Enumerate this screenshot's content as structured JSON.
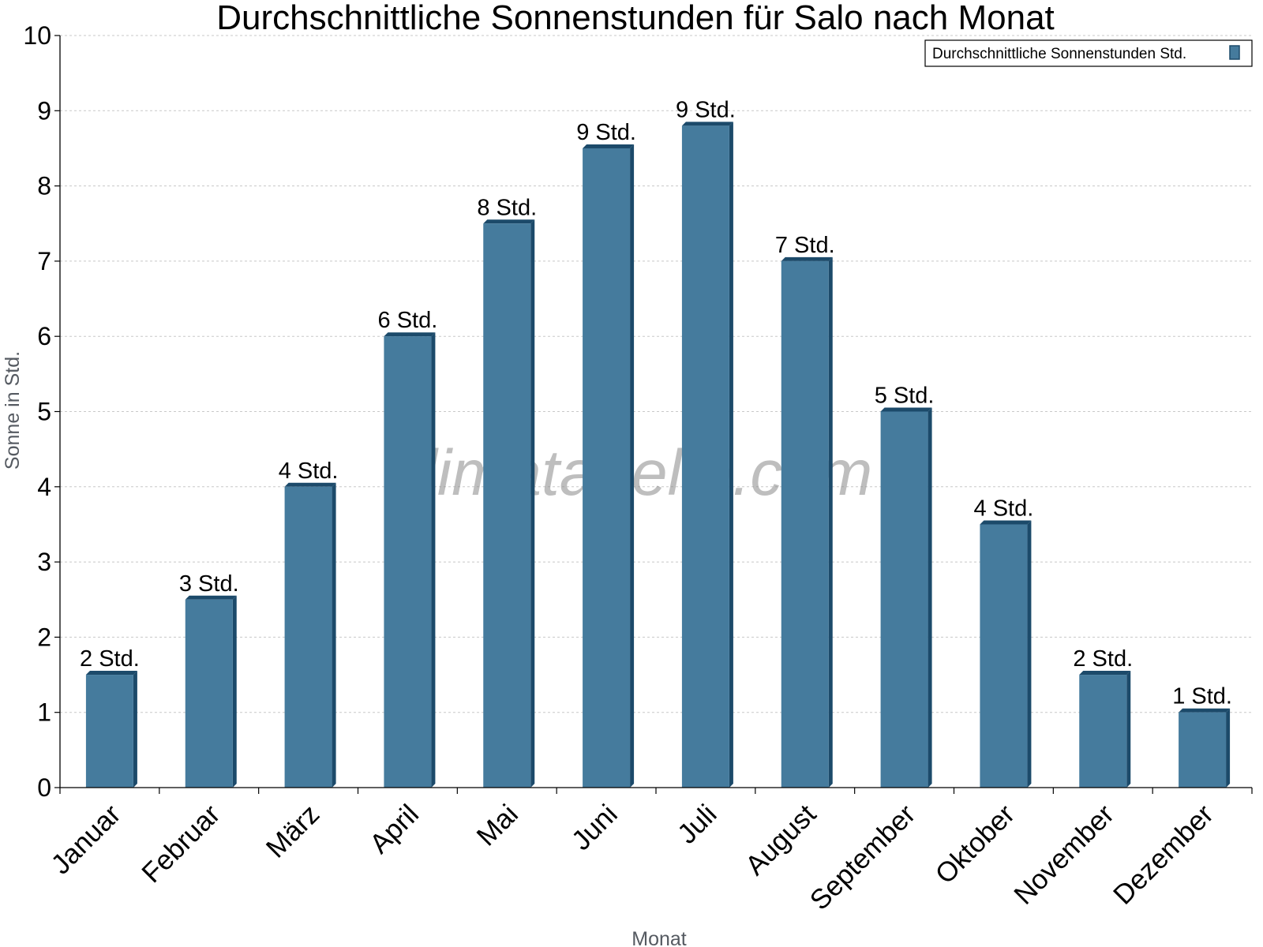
{
  "chart_data": {
    "type": "bar",
    "title": "Durchschnittliche Sonnenstunden für Salo nach Monat",
    "xlabel": "Monat",
    "ylabel": "Sonne in Std.",
    "ylim": [
      0,
      10
    ],
    "yticks": [
      "0",
      "1",
      "2",
      "3",
      "4",
      "5",
      "6",
      "7",
      "8",
      "9",
      "10"
    ],
    "grid": true,
    "legend_position": "top-right",
    "categories": [
      "Januar",
      "Februar",
      "März",
      "April",
      "Mai",
      "Juni",
      "Juli",
      "August",
      "September",
      "Oktober",
      "November",
      "Dezember"
    ],
    "series": [
      {
        "name": "Durchschnittliche Sonnenstunden Std.",
        "values": [
          1.5,
          2.5,
          4.0,
          6.0,
          7.5,
          8.5,
          8.8,
          7.0,
          5.0,
          3.5,
          1.5,
          1.0
        ],
        "labels": [
          "2 Std.",
          "3 Std.",
          "4 Std.",
          "6 Std.",
          "8 Std.",
          "9 Std.",
          "9 Std.",
          "7 Std.",
          "5 Std.",
          "4 Std.",
          "2 Std.",
          "1 Std."
        ],
        "color": "#457b9d",
        "shade_color": "#1c4a6a"
      }
    ]
  },
  "watermark": "klimatabelle.com"
}
